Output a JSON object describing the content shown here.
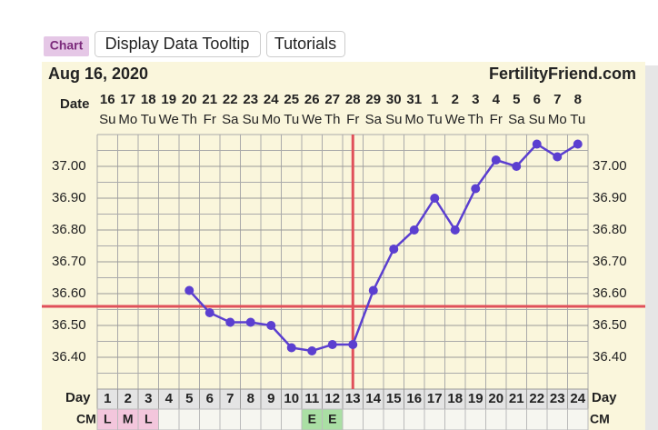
{
  "tabs": {
    "chart": "Chart",
    "tooltip": "Display Data Tooltip",
    "tutorials": "Tutorials"
  },
  "chart_data": {
    "type": "line",
    "title": "Aug 16, 2020",
    "site": "FertilityFriend.com",
    "date_label": "Date",
    "dates": [
      "16",
      "17",
      "18",
      "19",
      "20",
      "21",
      "22",
      "23",
      "24",
      "25",
      "26",
      "27",
      "28",
      "29",
      "30",
      "31",
      "1",
      "2",
      "3",
      "4",
      "5",
      "6",
      "7",
      "8"
    ],
    "weekdays": [
      "Su",
      "Mo",
      "Tu",
      "We",
      "Th",
      "Fr",
      "Sa",
      "Su",
      "Mo",
      "Tu",
      "We",
      "Th",
      "Fr",
      "Sa",
      "Su",
      "Mo",
      "Tu",
      "We",
      "Th",
      "Fr",
      "Sa",
      "Su",
      "Mo",
      "Tu"
    ],
    "day_label": "Day",
    "days": [
      1,
      2,
      3,
      4,
      5,
      6,
      7,
      8,
      9,
      10,
      11,
      12,
      13,
      14,
      15,
      16,
      17,
      18,
      19,
      20,
      21,
      22,
      23,
      24
    ],
    "cm_label": "CM",
    "cm": [
      "L",
      "M",
      "L",
      null,
      null,
      null,
      null,
      null,
      null,
      null,
      "E",
      "E",
      null,
      null,
      null,
      null,
      null,
      null,
      null,
      null,
      null,
      null,
      null,
      null
    ],
    "cm_colors": {
      "L": "#f3c6dc",
      "M": "#f3c6dc",
      "E": "#aadfa4"
    },
    "values": [
      null,
      null,
      null,
      null,
      36.61,
      36.54,
      36.51,
      36.51,
      36.5,
      36.43,
      36.42,
      36.44,
      36.44,
      36.61,
      36.74,
      36.8,
      36.9,
      36.8,
      36.93,
      37.02,
      37.0,
      37.07,
      37.03,
      37.07
    ],
    "color": "#5b3fd0",
    "coverline": 36.56,
    "ovulation_day": 13,
    "marker_color": "#e0505a",
    "ylim": [
      36.3,
      37.1
    ],
    "yticks": [
      {
        "value": 36.4,
        "label": "36.40"
      },
      {
        "value": 36.5,
        "label": "36.50"
      },
      {
        "value": 36.6,
        "label": "36.60"
      },
      {
        "value": 36.7,
        "label": "36.70"
      },
      {
        "value": 36.8,
        "label": "36.80"
      },
      {
        "value": 36.9,
        "label": "36.90"
      },
      {
        "value": 37.0,
        "label": "37.00"
      }
    ],
    "grid": true
  }
}
